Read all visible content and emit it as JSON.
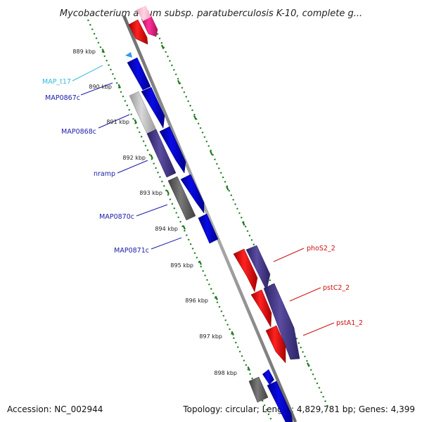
{
  "title": "Mycobacterium avium subsp. paratuberculosis K-10, complete g...",
  "footer": {
    "accession": "Accession: NC_002944",
    "stats": "Topology: circular; Length: 4,829,781 bp; Genes: 4,399"
  },
  "ticks": [
    "889 kbp",
    "890 kbp",
    "891 kbp",
    "892 kbp",
    "893 kbp",
    "894 kbp",
    "895 kbp",
    "896 kbp",
    "897 kbp",
    "898 kbp"
  ],
  "labels": [
    {
      "text": "MAP_t17",
      "color": "#33bbdd"
    },
    {
      "text": "MAP0867c",
      "color": "#1a1aa8"
    },
    {
      "text": "MAP0868c",
      "color": "#1a1aa8"
    },
    {
      "text": "nramp",
      "color": "#1a1aa8"
    },
    {
      "text": "MAP0870c",
      "color": "#1a1aa8"
    },
    {
      "text": "MAP0871c",
      "color": "#1a1aa8"
    },
    {
      "text": "phoS2_2",
      "color": "#cc1111"
    },
    {
      "text": "pstC2_2",
      "color": "#cc1111"
    },
    {
      "text": "pstA1_2",
      "color": "#cc1111"
    }
  ],
  "colors": {
    "blue": "#0a0ae6",
    "red": "#ee1111",
    "pink": "#ee2288",
    "purple": "#4a3d8c",
    "gray": "#6e6e6e",
    "lightgray": "#b8b8b8",
    "cyan": "#3399ee",
    "tick_green": "#1f7a1f",
    "backbone": "#8c8c8c"
  }
}
